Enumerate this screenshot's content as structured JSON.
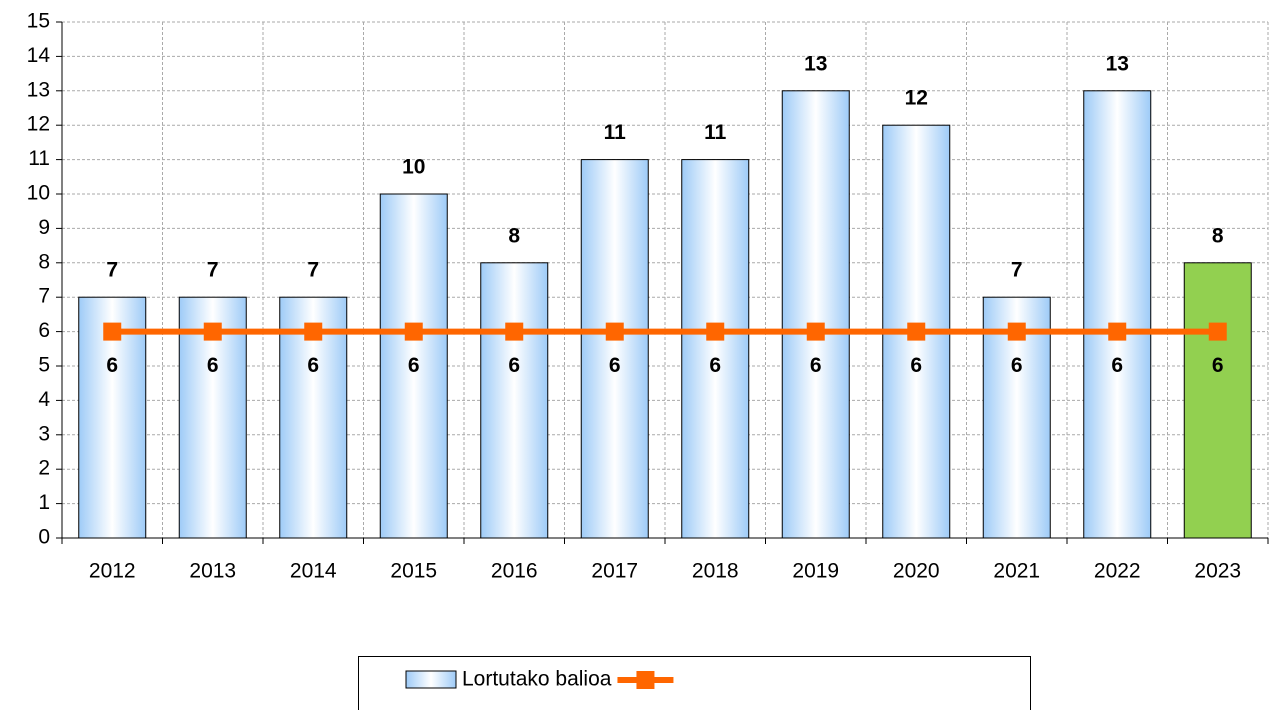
{
  "chart_data": {
    "type": "bar",
    "categories": [
      "2012",
      "2013",
      "2014",
      "2015",
      "2016",
      "2017",
      "2018",
      "2019",
      "2020",
      "2021",
      "2022",
      "2023"
    ],
    "series": [
      {
        "name": "Lortutako balioa",
        "type": "bar",
        "color": "#9ecbf7",
        "colors": [
          "#9ecbf7",
          "#9ecbf7",
          "#9ecbf7",
          "#9ecbf7",
          "#9ecbf7",
          "#9ecbf7",
          "#9ecbf7",
          "#9ecbf7",
          "#9ecbf7",
          "#9ecbf7",
          "#9ecbf7",
          "#92d050"
        ],
        "values": [
          7,
          7,
          7,
          10,
          8,
          11,
          11,
          13,
          12,
          7,
          13,
          8
        ]
      },
      {
        "type": "line",
        "color": "#ff6600",
        "values": [
          6,
          6,
          6,
          6,
          6,
          6,
          6,
          6,
          6,
          6,
          6,
          6
        ]
      }
    ],
    "ylim": [
      0,
      15
    ],
    "yticks": [
      0,
      1,
      2,
      3,
      4,
      5,
      6,
      7,
      8,
      9,
      10,
      11,
      12,
      13,
      14,
      15
    ],
    "grid": true,
    "legend": "bottom"
  }
}
